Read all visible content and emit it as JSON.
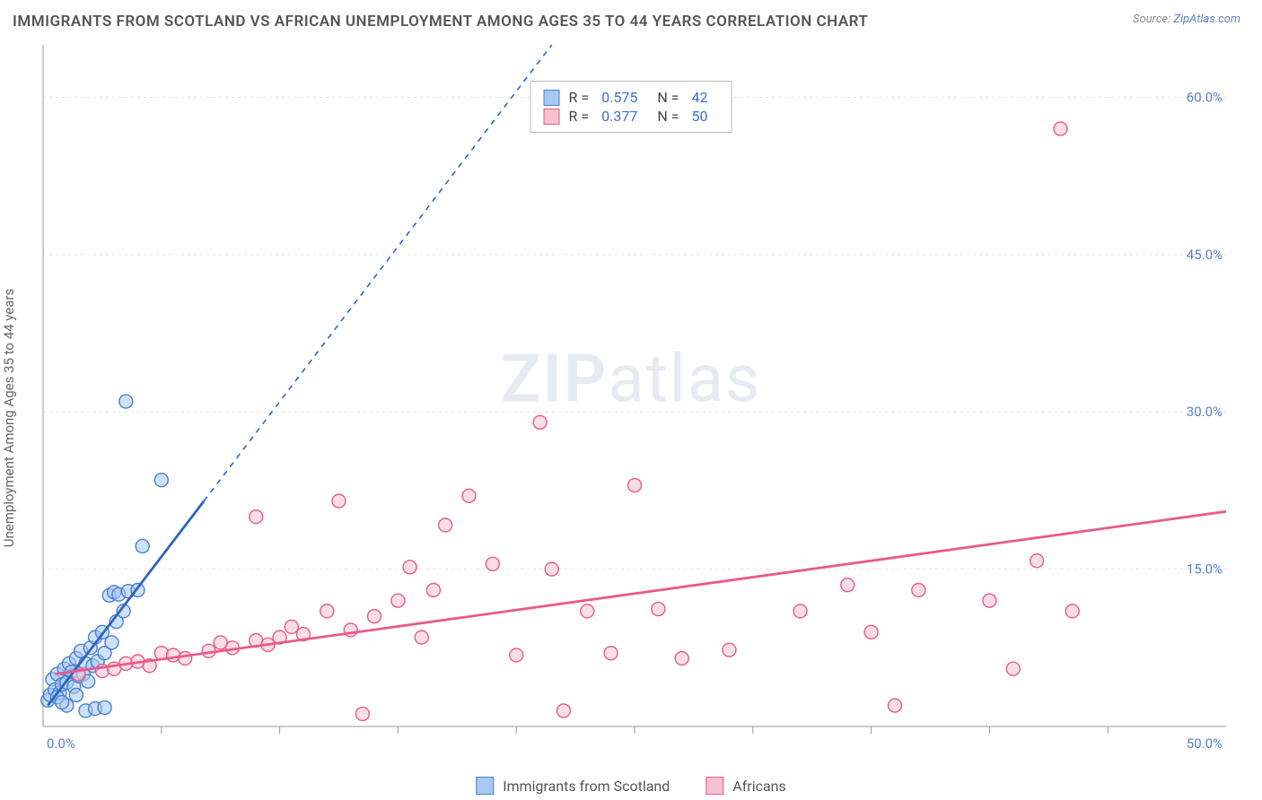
{
  "title": "IMMIGRANTS FROM SCOTLAND VS AFRICAN UNEMPLOYMENT AMONG AGES 35 TO 44 YEARS CORRELATION CHART",
  "source_prefix": "Source: ",
  "source_name": "ZipAtlas.com",
  "watermark_zip": "ZIP",
  "watermark_atlas": "atlas",
  "ylabel": "Unemployment Among Ages 35 to 44 years",
  "chart": {
    "type": "scatter-correlation",
    "xlim": [
      0,
      50
    ],
    "ylim": [
      0,
      65
    ],
    "x_ticks_minor_step": 5,
    "x_tick_major": [
      0,
      50
    ],
    "x_tick_labels": {
      "0": "0.0%",
      "50": "50.0%"
    },
    "y_ticks": [
      15,
      30,
      45,
      60
    ],
    "y_tick_labels": {
      "15": "15.0%",
      "30": "30.0%",
      "45": "45.0%",
      "60": "60.0%"
    },
    "grid_color": "#e3e3e3",
    "axis_color": "#999",
    "tick_label_color": "#5a7fc7",
    "marker_radius": 7.5,
    "marker_stroke_width": 1.4,
    "trend_width_solid": 2.8,
    "trend_width_dash": 1.6,
    "series": [
      {
        "key": "scotland",
        "label": "Immigrants from Scotland",
        "fill": "#a8c8f0",
        "stroke": "#4a80d0",
        "trend_color": "#2f64c0",
        "R": "0.575",
        "N": "42",
        "trend_solid": {
          "x1": 0.2,
          "y1": 2.0,
          "x2": 6.8,
          "y2": 21.5
        },
        "trend_dash": {
          "x1": 6.8,
          "y1": 21.5,
          "x2": 21.5,
          "y2": 65.0
        },
        "points": [
          [
            0.2,
            2.5
          ],
          [
            0.3,
            3.0
          ],
          [
            0.4,
            4.5
          ],
          [
            0.5,
            3.5
          ],
          [
            0.6,
            5.0
          ],
          [
            0.7,
            3.2
          ],
          [
            0.8,
            4.0
          ],
          [
            0.9,
            5.5
          ],
          [
            1.0,
            4.2
          ],
          [
            1.1,
            6.0
          ],
          [
            1.2,
            5.2
          ],
          [
            1.3,
            3.8
          ],
          [
            1.4,
            6.5
          ],
          [
            1.5,
            4.8
          ],
          [
            1.6,
            7.2
          ],
          [
            1.7,
            5.0
          ],
          [
            1.8,
            6.0
          ],
          [
            1.9,
            4.3
          ],
          [
            2.0,
            7.5
          ],
          [
            2.1,
            5.8
          ],
          [
            2.2,
            8.5
          ],
          [
            2.3,
            6.2
          ],
          [
            2.5,
            9.0
          ],
          [
            2.6,
            7.0
          ],
          [
            2.8,
            12.5
          ],
          [
            2.9,
            8.0
          ],
          [
            3.0,
            12.8
          ],
          [
            3.1,
            10.0
          ],
          [
            3.2,
            12.6
          ],
          [
            3.4,
            11.0
          ],
          [
            3.6,
            12.9
          ],
          [
            3.5,
            31.0
          ],
          [
            1.8,
            1.5
          ],
          [
            2.2,
            1.7
          ],
          [
            2.6,
            1.8
          ],
          [
            4.0,
            13.0
          ],
          [
            4.2,
            17.2
          ],
          [
            5.0,
            23.5
          ],
          [
            1.0,
            2.0
          ],
          [
            0.6,
            2.8
          ],
          [
            1.4,
            3.0
          ],
          [
            0.8,
            2.3
          ]
        ]
      },
      {
        "key": "africans",
        "label": "Africans",
        "fill": "#f7c2d0",
        "stroke": "#e85a8a",
        "trend_color": "#e85a8a",
        "R": "0.377",
        "N": "50",
        "trend_solid": {
          "x1": 0.5,
          "y1": 5.0,
          "x2": 50.0,
          "y2": 20.5
        },
        "trend_dash": null,
        "points": [
          [
            1.5,
            5.0
          ],
          [
            2.5,
            5.3
          ],
          [
            3.0,
            5.5
          ],
          [
            3.5,
            6.0
          ],
          [
            4.5,
            5.8
          ],
          [
            5.0,
            7.0
          ],
          [
            6.0,
            6.5
          ],
          [
            7.0,
            7.2
          ],
          [
            7.5,
            8.0
          ],
          [
            8.0,
            7.5
          ],
          [
            9.0,
            8.2
          ],
          [
            9.5,
            7.8
          ],
          [
            10.0,
            8.5
          ],
          [
            10.5,
            9.5
          ],
          [
            11.0,
            8.8
          ],
          [
            12.0,
            11.0
          ],
          [
            13.0,
            9.2
          ],
          [
            13.5,
            1.2
          ],
          [
            14.0,
            10.5
          ],
          [
            15.0,
            12.0
          ],
          [
            15.5,
            15.2
          ],
          [
            16.0,
            8.5
          ],
          [
            16.5,
            13.0
          ],
          [
            17.0,
            19.2
          ],
          [
            18.0,
            22.0
          ],
          [
            19.0,
            15.5
          ],
          [
            20.0,
            6.8
          ],
          [
            21.0,
            29.0
          ],
          [
            21.5,
            15.0
          ],
          [
            22.0,
            1.5
          ],
          [
            23.0,
            11.0
          ],
          [
            24.0,
            7.0
          ],
          [
            25.0,
            23.0
          ],
          [
            26.0,
            11.2
          ],
          [
            27.0,
            6.5
          ],
          [
            29.0,
            7.3
          ],
          [
            32.0,
            11.0
          ],
          [
            34.0,
            13.5
          ],
          [
            35.0,
            9.0
          ],
          [
            36.0,
            2.0
          ],
          [
            37.0,
            13.0
          ],
          [
            40.0,
            12.0
          ],
          [
            41.0,
            5.5
          ],
          [
            42.0,
            15.8
          ],
          [
            43.0,
            57.0
          ],
          [
            43.5,
            11.0
          ],
          [
            9.0,
            20.0
          ],
          [
            12.5,
            21.5
          ],
          [
            4.0,
            6.2
          ],
          [
            5.5,
            6.8
          ]
        ]
      }
    ]
  },
  "legend_labels": {
    "R_eq": "R =",
    "N_eq": "N ="
  }
}
